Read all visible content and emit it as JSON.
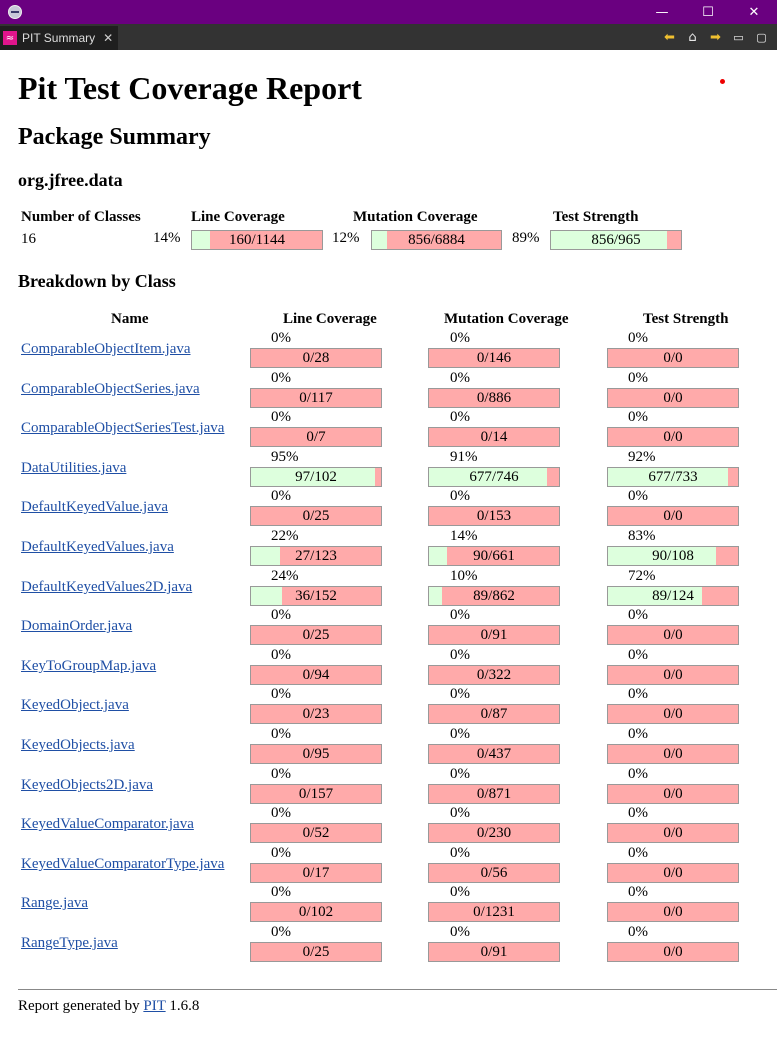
{
  "window": {
    "title": "",
    "minimize": "—",
    "maximize": "☐",
    "close": "✕"
  },
  "tab": {
    "label": "PIT Summary",
    "close": "✕",
    "icon": "pit-icon"
  },
  "colors": {
    "titlebar": "#6a0080",
    "covered": "#ddffdd",
    "uncovered": "#ffaaaa",
    "link": "#1f4fa5"
  },
  "report": {
    "title": "Pit Test Coverage Report",
    "package_summary_heading": "Package Summary",
    "package_name": "org.jfree.data",
    "summary_headers": {
      "classes": "Number of Classes",
      "line": "Line Coverage",
      "mutation": "Mutation Coverage",
      "strength": "Test Strength"
    },
    "summary": {
      "classes": "16",
      "line": {
        "pct": "14%",
        "label": "160/1144",
        "value": 0.14
      },
      "mutation": {
        "pct": "12%",
        "label": "856/6884",
        "value": 0.12
      },
      "strength": {
        "pct": "89%",
        "label": "856/965",
        "value": 0.89
      }
    },
    "breakdown_heading": "Breakdown by Class",
    "breakdown_headers": {
      "name": "Name",
      "line": "Line Coverage",
      "mutation": "Mutation Coverage",
      "strength": "Test Strength"
    },
    "classes": [
      {
        "name": "ComparableObjectItem.java",
        "line": {
          "pct": "0%",
          "label": "0/28",
          "value": 0
        },
        "mutation": {
          "pct": "0%",
          "label": "0/146",
          "value": 0
        },
        "strength": {
          "pct": "0%",
          "label": "0/0",
          "value": 0
        }
      },
      {
        "name": "ComparableObjectSeries.java",
        "line": {
          "pct": "0%",
          "label": "0/117",
          "value": 0
        },
        "mutation": {
          "pct": "0%",
          "label": "0/886",
          "value": 0
        },
        "strength": {
          "pct": "0%",
          "label": "0/0",
          "value": 0
        }
      },
      {
        "name": "ComparableObjectSeriesTest.java",
        "line": {
          "pct": "0%",
          "label": "0/7",
          "value": 0
        },
        "mutation": {
          "pct": "0%",
          "label": "0/14",
          "value": 0
        },
        "strength": {
          "pct": "0%",
          "label": "0/0",
          "value": 0
        }
      },
      {
        "name": "DataUtilities.java",
        "line": {
          "pct": "95%",
          "label": "97/102",
          "value": 0.95
        },
        "mutation": {
          "pct": "91%",
          "label": "677/746",
          "value": 0.91
        },
        "strength": {
          "pct": "92%",
          "label": "677/733",
          "value": 0.92
        }
      },
      {
        "name": "DefaultKeyedValue.java",
        "line": {
          "pct": "0%",
          "label": "0/25",
          "value": 0
        },
        "mutation": {
          "pct": "0%",
          "label": "0/153",
          "value": 0
        },
        "strength": {
          "pct": "0%",
          "label": "0/0",
          "value": 0
        }
      },
      {
        "name": "DefaultKeyedValues.java",
        "line": {
          "pct": "22%",
          "label": "27/123",
          "value": 0.22
        },
        "mutation": {
          "pct": "14%",
          "label": "90/661",
          "value": 0.14
        },
        "strength": {
          "pct": "83%",
          "label": "90/108",
          "value": 0.83
        }
      },
      {
        "name": "DefaultKeyedValues2D.java",
        "line": {
          "pct": "24%",
          "label": "36/152",
          "value": 0.24
        },
        "mutation": {
          "pct": "10%",
          "label": "89/862",
          "value": 0.1
        },
        "strength": {
          "pct": "72%",
          "label": "89/124",
          "value": 0.72
        }
      },
      {
        "name": "DomainOrder.java",
        "line": {
          "pct": "0%",
          "label": "0/25",
          "value": 0
        },
        "mutation": {
          "pct": "0%",
          "label": "0/91",
          "value": 0
        },
        "strength": {
          "pct": "0%",
          "label": "0/0",
          "value": 0
        }
      },
      {
        "name": "KeyToGroupMap.java",
        "line": {
          "pct": "0%",
          "label": "0/94",
          "value": 0
        },
        "mutation": {
          "pct": "0%",
          "label": "0/322",
          "value": 0
        },
        "strength": {
          "pct": "0%",
          "label": "0/0",
          "value": 0
        }
      },
      {
        "name": "KeyedObject.java",
        "line": {
          "pct": "0%",
          "label": "0/23",
          "value": 0
        },
        "mutation": {
          "pct": "0%",
          "label": "0/87",
          "value": 0
        },
        "strength": {
          "pct": "0%",
          "label": "0/0",
          "value": 0
        }
      },
      {
        "name": "KeyedObjects.java",
        "line": {
          "pct": "0%",
          "label": "0/95",
          "value": 0
        },
        "mutation": {
          "pct": "0%",
          "label": "0/437",
          "value": 0
        },
        "strength": {
          "pct": "0%",
          "label": "0/0",
          "value": 0
        }
      },
      {
        "name": "KeyedObjects2D.java",
        "line": {
          "pct": "0%",
          "label": "0/157",
          "value": 0
        },
        "mutation": {
          "pct": "0%",
          "label": "0/871",
          "value": 0
        },
        "strength": {
          "pct": "0%",
          "label": "0/0",
          "value": 0
        }
      },
      {
        "name": "KeyedValueComparator.java",
        "line": {
          "pct": "0%",
          "label": "0/52",
          "value": 0
        },
        "mutation": {
          "pct": "0%",
          "label": "0/230",
          "value": 0
        },
        "strength": {
          "pct": "0%",
          "label": "0/0",
          "value": 0
        }
      },
      {
        "name": "KeyedValueComparatorType.java",
        "line": {
          "pct": "0%",
          "label": "0/17",
          "value": 0
        },
        "mutation": {
          "pct": "0%",
          "label": "0/56",
          "value": 0
        },
        "strength": {
          "pct": "0%",
          "label": "0/0",
          "value": 0
        }
      },
      {
        "name": "Range.java",
        "line": {
          "pct": "0%",
          "label": "0/102",
          "value": 0
        },
        "mutation": {
          "pct": "0%",
          "label": "0/1231",
          "value": 0
        },
        "strength": {
          "pct": "0%",
          "label": "0/0",
          "value": 0
        }
      },
      {
        "name": "RangeType.java",
        "line": {
          "pct": "0%",
          "label": "0/25",
          "value": 0
        },
        "mutation": {
          "pct": "0%",
          "label": "0/91",
          "value": 0
        },
        "strength": {
          "pct": "0%",
          "label": "0/0",
          "value": 0
        }
      }
    ],
    "footer": {
      "prefix": "Report generated by",
      "link": "PIT",
      "version": "1.6.8"
    }
  }
}
